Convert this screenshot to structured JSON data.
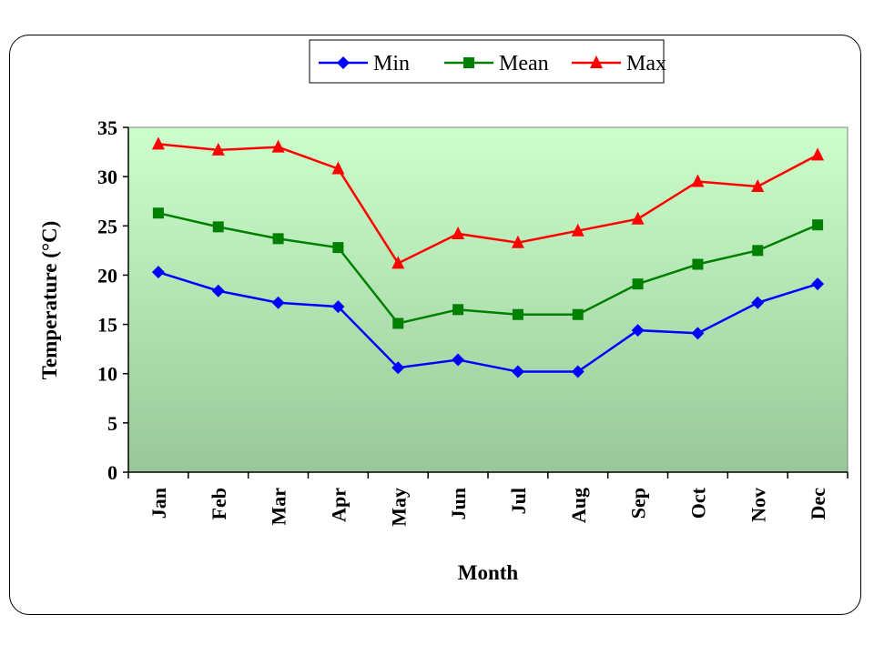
{
  "chart_data": {
    "type": "line",
    "categories": [
      "Jan",
      "Feb",
      "Mar",
      "Apr",
      "May",
      "Jun",
      "Jul",
      "Aug",
      "Sep",
      "Oct",
      "Nov",
      "Dec"
    ],
    "series": [
      {
        "name": "Min",
        "color": "#0000ff",
        "marker": "diamond",
        "values": [
          20.3,
          18.4,
          17.2,
          16.8,
          10.6,
          11.4,
          10.2,
          10.2,
          14.4,
          14.1,
          17.2,
          19.1
        ]
      },
      {
        "name": "Mean",
        "color": "#008000",
        "marker": "square",
        "values": [
          26.3,
          24.9,
          23.7,
          22.8,
          15.1,
          16.5,
          16.0,
          16.0,
          19.1,
          21.1,
          22.5,
          25.1
        ]
      },
      {
        "name": "Max",
        "color": "#ff0000",
        "marker": "triangle",
        "values": [
          33.3,
          32.7,
          33.0,
          30.8,
          21.2,
          24.2,
          23.3,
          24.5,
          25.7,
          29.5,
          29.0,
          32.2
        ]
      }
    ],
    "title": "",
    "xlabel": "Month",
    "ylabel": "Temperature (°C)",
    "ylim": [
      0,
      35
    ],
    "yticks": [
      0,
      5,
      10,
      15,
      20,
      25,
      30,
      35
    ],
    "legend": "top-center",
    "grid": false,
    "plot_background": "green gradient",
    "plot_colors": {
      "top": "#ccffcc",
      "bottom": "#99c799"
    }
  }
}
